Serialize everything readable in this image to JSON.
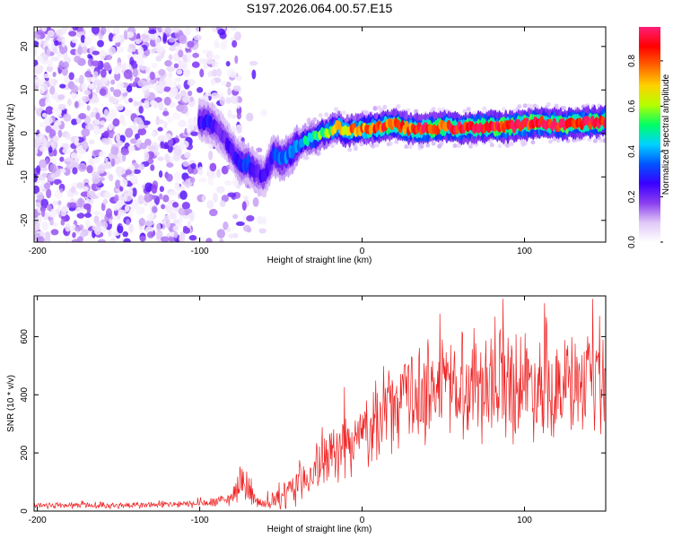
{
  "title": "S197.2026.064.00.57.E15",
  "chart_data": [
    {
      "type": "heatmap",
      "title": "S197.2026.064.00.57.E15",
      "xlabel": "Height of straight line (km)",
      "ylabel": "Frequency (Hz)",
      "xlim": [
        -202,
        150
      ],
      "ylim": [
        -25,
        24.5
      ],
      "xticks": [
        -200,
        -100,
        0,
        100
      ],
      "yticks": [
        -20,
        -10,
        0,
        10,
        20
      ],
      "colorbar": {
        "label": "Normalized spectral amplitude",
        "range": [
          0,
          0.95
        ],
        "ticks": [
          0.0,
          0.2,
          0.4,
          0.6,
          0.8
        ],
        "tick_labels": [
          "0.0",
          "0.2",
          "0.4",
          "0.6",
          "0.8"
        ],
        "colormap": [
          "#ffffff",
          "#e0c8f8",
          "#8a3ef0",
          "#3a00ff",
          "#0055ff",
          "#00d2ff",
          "#00ff64",
          "#b4ff00",
          "#ffd200",
          "#ff6400",
          "#ff0000",
          "#ff1e78"
        ]
      },
      "ridge": {
        "description": "frequency of the dominant spectral peak versus height",
        "x": [
          -100,
          -95,
          -90,
          -85,
          -80,
          -75,
          -70,
          -65,
          -60,
          -55,
          -50,
          -45,
          -40,
          -35,
          -30,
          -25,
          -20,
          -15,
          -10,
          -5,
          0,
          10,
          20,
          30,
          40,
          50,
          60,
          70,
          80,
          90,
          100,
          110,
          120,
          130,
          140,
          150
        ],
        "y": [
          3,
          2.5,
          1.5,
          -1,
          -4,
          -7,
          -7,
          -9,
          -10,
          -5,
          -6,
          -5,
          -3,
          -1.5,
          -1,
          0,
          0.5,
          1.5,
          0.5,
          0.8,
          1,
          1.5,
          2,
          1,
          1,
          1.5,
          1.2,
          1.4,
          1.6,
          1.5,
          2,
          2.5,
          2,
          2.2,
          2.5,
          2.8
        ],
        "peak_amplitude": [
          0.25,
          0.28,
          0.22,
          0.2,
          0.25,
          0.3,
          0.3,
          0.25,
          0.22,
          0.3,
          0.35,
          0.35,
          0.4,
          0.45,
          0.5,
          0.55,
          0.6,
          0.65,
          0.7,
          0.72,
          0.75,
          0.8,
          0.82,
          0.8,
          0.85,
          0.85,
          0.85,
          0.88,
          0.88,
          0.9,
          0.9,
          0.92,
          0.92,
          0.9,
          0.9,
          0.9
        ]
      },
      "noise_region_x": [
        -202,
        -60
      ]
    },
    {
      "type": "line",
      "title": "",
      "xlabel": "Height of straight line (km)",
      "ylabel": "SNR (10 * v/v)",
      "xlim": [
        -202,
        150
      ],
      "ylim": [
        0,
        740
      ],
      "xticks": [
        -200,
        -100,
        0,
        100
      ],
      "yticks": [
        0,
        200,
        400,
        600
      ],
      "color": "#ee2020",
      "series": [
        {
          "name": "SNR",
          "envelope_x": [
            -202,
            -180,
            -160,
            -140,
            -120,
            -100,
            -90,
            -80,
            -75,
            -70,
            -65,
            -60,
            -50,
            -40,
            -30,
            -20,
            -10,
            0,
            10,
            20,
            30,
            40,
            50,
            60,
            70,
            80,
            90,
            100,
            110,
            120,
            130,
            140,
            150
          ],
          "mean": [
            20,
            20,
            20,
            20,
            22,
            25,
            30,
            45,
            110,
            75,
            30,
            20,
            40,
            90,
            140,
            180,
            220,
            260,
            320,
            360,
            390,
            420,
            430,
            440,
            440,
            450,
            450,
            440,
            440,
            430,
            430,
            420,
            420
          ],
          "spread": [
            10,
            10,
            10,
            10,
            10,
            12,
            15,
            25,
            50,
            40,
            20,
            15,
            35,
            60,
            70,
            80,
            90,
            100,
            110,
            130,
            140,
            150,
            150,
            160,
            160,
            160,
            170,
            160,
            150,
            150,
            150,
            140,
            150
          ],
          "max_value": 730
        }
      ]
    }
  ]
}
